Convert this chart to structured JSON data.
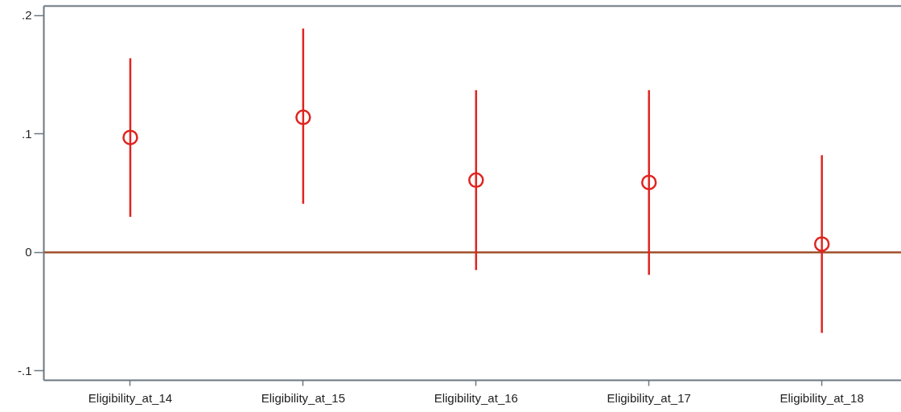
{
  "chart_data": {
    "type": "scatter",
    "categories": [
      "Eligibility_at_14",
      "Eligibility_at_15",
      "Eligibility_at_16",
      "Eligibility_at_17",
      "Eligibility_at_18"
    ],
    "series": [
      {
        "color": "#e0241f",
        "values": [
          0.097,
          0.114,
          0.061,
          0.059,
          0.007
        ],
        "errors": [
          [
            0.03,
            0.164
          ],
          [
            0.041,
            0.189
          ],
          [
            -0.015,
            0.137
          ],
          [
            -0.019,
            0.137
          ],
          [
            -0.068,
            0.082
          ]
        ]
      }
    ],
    "ylim": [
      -0.108,
      0.208
    ],
    "yticks": [
      {
        "value": -0.1,
        "label": "-.1"
      },
      0,
      {
        "value": 0.1,
        "label": ".1"
      },
      {
        "value": 0.2,
        "label": ".2"
      }
    ],
    "ref_lines": [
      {
        "axis": "y",
        "value": 0,
        "color": "#a0522d"
      }
    ],
    "marker": "circle"
  }
}
